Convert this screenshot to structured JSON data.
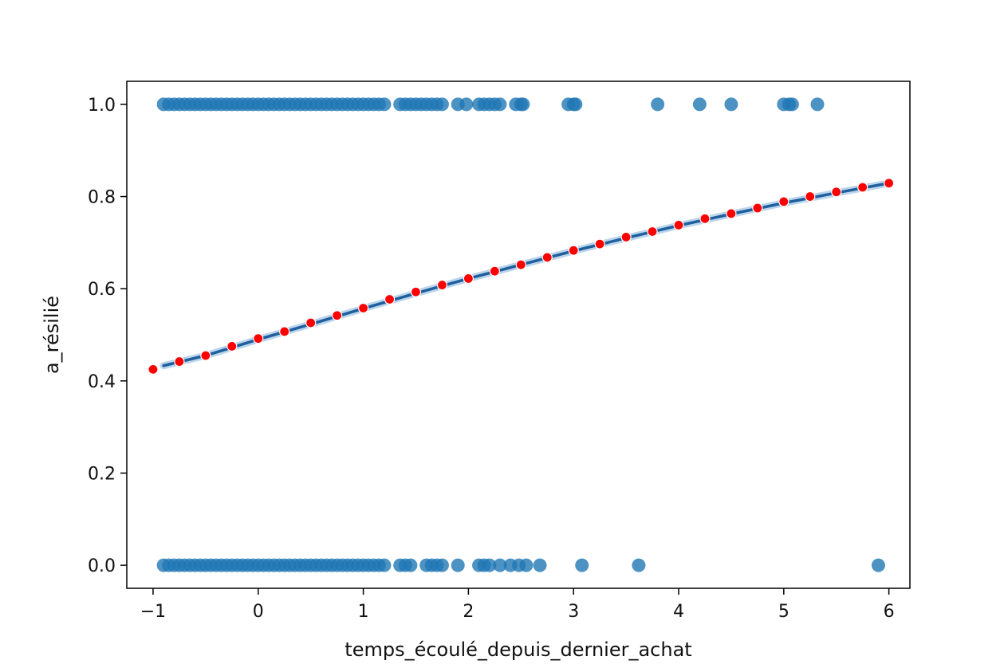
{
  "chart_data": {
    "type": "scatter",
    "title": "",
    "xlabel": "temps_écoulé_depuis_dernier_achat",
    "ylabel": "a_résilié",
    "xlim": [
      -1.25,
      6.2
    ],
    "ylim": [
      -0.05,
      1.05
    ],
    "xticks": [
      -1,
      0,
      1,
      2,
      3,
      4,
      5,
      6
    ],
    "xtick_labels": [
      "−1",
      "0",
      "1",
      "2",
      "3",
      "4",
      "5",
      "6"
    ],
    "yticks": [
      0.0,
      0.2,
      0.4,
      0.6,
      0.8,
      1.0
    ],
    "ytick_labels": [
      "0.0",
      "0.2",
      "0.4",
      "0.6",
      "0.8",
      "1.0"
    ],
    "grid": false,
    "series": [
      {
        "kind": "observations",
        "color": "#1f77b4",
        "x": [
          -0.9,
          -0.85,
          -0.8,
          -0.75,
          -0.7,
          -0.65,
          -0.6,
          -0.55,
          -0.5,
          -0.45,
          -0.4,
          -0.35,
          -0.3,
          -0.25,
          -0.2,
          -0.15,
          -0.1,
          -0.05,
          0.0,
          0.05,
          0.1,
          0.15,
          0.2,
          0.25,
          0.3,
          0.35,
          0.4,
          0.45,
          0.5,
          0.55,
          0.6,
          0.65,
          0.7,
          0.75,
          0.8,
          0.85,
          0.9,
          0.95,
          1.0,
          1.05,
          1.1,
          1.15,
          1.2,
          1.35,
          1.4,
          1.45,
          1.5,
          1.55,
          1.6,
          1.65,
          1.7,
          1.75,
          1.9,
          1.98,
          2.1,
          2.15,
          2.2,
          2.25,
          2.3,
          2.45,
          2.5,
          2.52,
          2.95,
          3.0,
          3.02,
          3.8,
          4.2,
          4.5,
          5.0,
          5.05,
          5.08,
          5.32,
          -0.9,
          -0.85,
          -0.8,
          -0.75,
          -0.7,
          -0.65,
          -0.6,
          -0.55,
          -0.5,
          -0.45,
          -0.4,
          -0.35,
          -0.3,
          -0.25,
          -0.2,
          -0.15,
          -0.1,
          -0.05,
          0.0,
          0.05,
          0.1,
          0.15,
          0.2,
          0.25,
          0.3,
          0.35,
          0.4,
          0.45,
          0.5,
          0.55,
          0.6,
          0.65,
          0.7,
          0.75,
          0.8,
          0.85,
          0.9,
          0.95,
          1.0,
          1.05,
          1.1,
          1.15,
          1.2,
          1.35,
          1.4,
          1.45,
          1.6,
          1.65,
          1.7,
          1.75,
          1.9,
          2.1,
          2.15,
          2.2,
          2.3,
          2.4,
          2.48,
          2.55,
          2.68,
          3.08,
          3.62,
          5.9
        ],
        "y": [
          1,
          1,
          1,
          1,
          1,
          1,
          1,
          1,
          1,
          1,
          1,
          1,
          1,
          1,
          1,
          1,
          1,
          1,
          1,
          1,
          1,
          1,
          1,
          1,
          1,
          1,
          1,
          1,
          1,
          1,
          1,
          1,
          1,
          1,
          1,
          1,
          1,
          1,
          1,
          1,
          1,
          1,
          1,
          1,
          1,
          1,
          1,
          1,
          1,
          1,
          1,
          1,
          1,
          1,
          1,
          1,
          1,
          1,
          1,
          1,
          1,
          1,
          1,
          1,
          1,
          1,
          1,
          1,
          1,
          1,
          1,
          1,
          0,
          0,
          0,
          0,
          0,
          0,
          0,
          0,
          0,
          0,
          0,
          0,
          0,
          0,
          0,
          0,
          0,
          0,
          0,
          0,
          0,
          0,
          0,
          0,
          0,
          0,
          0,
          0,
          0,
          0,
          0,
          0,
          0,
          0,
          0,
          0,
          0,
          0,
          0,
          0,
          0,
          0,
          0,
          0,
          0,
          0,
          0,
          0,
          0,
          0,
          0,
          0,
          0,
          0,
          0,
          0,
          0,
          0,
          0,
          0,
          0,
          0
        ]
      },
      {
        "kind": "fitted-curve",
        "color": "#1f5f9e",
        "x": [
          -0.9,
          -0.5,
          0,
          0.5,
          1,
          1.5,
          2,
          2.5,
          3,
          3.5,
          4,
          4.5,
          5,
          5.5,
          6
        ],
        "y": [
          0.433,
          0.455,
          0.49,
          0.523,
          0.557,
          0.59,
          0.622,
          0.652,
          0.682,
          0.71,
          0.737,
          0.762,
          0.786,
          0.808,
          0.829
        ]
      },
      {
        "kind": "predictions",
        "color": "#ff0000",
        "x": [
          -1,
          -0.75,
          -0.5,
          -0.25,
          0,
          0.25,
          0.5,
          0.75,
          1,
          1.25,
          1.5,
          1.75,
          2,
          2.25,
          2.5,
          2.75,
          3,
          3.25,
          3.5,
          3.75,
          4,
          4.25,
          4.5,
          4.75,
          5,
          5.25,
          5.5,
          5.75,
          6
        ],
        "y": [
          0.425,
          0.442,
          0.455,
          0.475,
          0.492,
          0.507,
          0.526,
          0.542,
          0.558,
          0.577,
          0.593,
          0.608,
          0.622,
          0.638,
          0.652,
          0.668,
          0.683,
          0.697,
          0.712,
          0.724,
          0.738,
          0.752,
          0.763,
          0.775,
          0.789,
          0.8,
          0.81,
          0.82,
          0.829
        ]
      }
    ]
  }
}
